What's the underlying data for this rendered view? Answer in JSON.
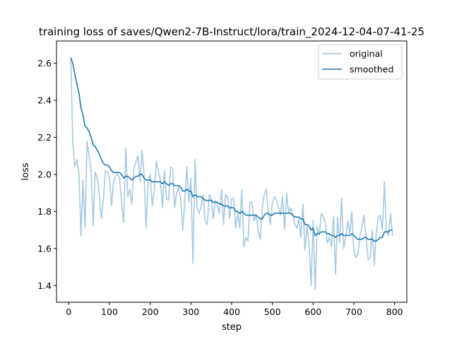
{
  "chart_data": {
    "type": "line",
    "title": "training loss of saves/Qwen2-7B-Instruct/lora/train_2024-12-04-07-41-25",
    "xlabel": "step",
    "ylabel": "loss",
    "xlim": [
      -30,
      830
    ],
    "ylim": [
      1.31,
      2.72
    ],
    "xticks": [
      0,
      100,
      200,
      300,
      400,
      500,
      600,
      700,
      800
    ],
    "yticks": [
      1.4,
      1.6,
      1.8,
      2.0,
      2.2,
      2.4,
      2.6
    ],
    "ytick_labels": [
      "1.4",
      "1.6",
      "1.8",
      "2.0",
      "2.2",
      "2.4",
      "2.6"
    ],
    "grid": false,
    "legend_position": "top-right",
    "series": [
      {
        "name": "original",
        "color": "#1f77b4",
        "alpha": 0.4,
        "x": [
          5,
          10,
          15,
          20,
          25,
          30,
          35,
          40,
          45,
          50,
          55,
          60,
          65,
          70,
          75,
          80,
          85,
          90,
          95,
          100,
          105,
          110,
          115,
          120,
          125,
          130,
          135,
          140,
          145,
          150,
          155,
          160,
          165,
          170,
          175,
          180,
          185,
          190,
          195,
          200,
          205,
          210,
          215,
          220,
          225,
          230,
          235,
          240,
          245,
          250,
          255,
          260,
          265,
          270,
          275,
          280,
          285,
          290,
          295,
          300,
          305,
          310,
          315,
          320,
          325,
          330,
          335,
          340,
          345,
          350,
          355,
          360,
          365,
          370,
          375,
          380,
          385,
          390,
          395,
          400,
          405,
          410,
          415,
          420,
          425,
          430,
          435,
          440,
          445,
          450,
          455,
          460,
          465,
          470,
          475,
          480,
          485,
          490,
          495,
          500,
          505,
          510,
          515,
          520,
          525,
          530,
          535,
          540,
          545,
          550,
          555,
          560,
          565,
          570,
          575,
          580,
          585,
          590,
          595,
          600,
          605,
          610,
          615,
          620,
          625,
          630,
          635,
          640,
          645,
          650,
          655,
          660,
          665,
          670,
          675,
          680,
          685,
          690,
          695,
          700,
          705,
          710,
          715,
          720,
          725,
          730,
          735,
          740,
          745,
          750,
          755,
          760,
          765,
          770,
          775,
          780,
          785,
          790,
          795
        ],
        "y": [
          2.63,
          2.17,
          2.04,
          2.08,
          2.01,
          1.67,
          1.97,
          1.71,
          2.18,
          2.1,
          2.02,
          1.72,
          2.01,
          1.98,
          1.89,
          1.76,
          1.86,
          2.02,
          2.01,
          1.99,
          1.83,
          1.96,
          1.99,
          2.0,
          1.98,
          1.84,
          1.74,
          2.14,
          1.88,
          1.92,
          1.84,
          2.03,
          2.07,
          2.1,
          1.96,
          2.13,
          2.0,
          1.71,
          1.96,
          2.0,
          1.83,
          1.92,
          2.07,
          2.02,
          1.97,
          1.82,
          2.02,
          1.87,
          1.86,
          2.04,
          2.03,
          1.82,
          1.9,
          1.93,
          1.86,
          1.7,
          1.86,
          2.04,
          1.85,
          1.98,
          1.52,
          2.08,
          1.82,
          1.79,
          1.83,
          1.89,
          1.75,
          1.73,
          1.89,
          1.87,
          1.76,
          1.86,
          1.83,
          1.79,
          1.92,
          1.73,
          1.89,
          1.88,
          1.76,
          1.87,
          1.87,
          1.71,
          1.79,
          1.71,
          1.92,
          1.61,
          1.66,
          1.64,
          1.85,
          1.85,
          1.75,
          1.78,
          1.7,
          1.65,
          1.82,
          1.89,
          1.92,
          1.8,
          1.73,
          1.85,
          1.88,
          1.86,
          1.82,
          1.78,
          1.88,
          1.7,
          1.9,
          1.79,
          1.82,
          1.78,
          1.73,
          1.71,
          1.76,
          1.66,
          1.84,
          1.59,
          1.72,
          1.62,
          1.4,
          1.75,
          1.38,
          1.72,
          1.67,
          1.79,
          1.77,
          1.74,
          1.63,
          1.66,
          1.61,
          1.77,
          1.46,
          1.77,
          1.63,
          1.87,
          1.6,
          1.66,
          1.75,
          1.68,
          1.8,
          1.59,
          1.55,
          1.57,
          1.67,
          1.72,
          1.78,
          1.66,
          1.54,
          1.55,
          1.7,
          1.51,
          1.68,
          1.77,
          1.78,
          1.7,
          1.96,
          1.69,
          1.67,
          1.79,
          1.67
        ]
      },
      {
        "name": "smoothed",
        "color": "#1f77b4",
        "alpha": 1.0,
        "x": [
          5,
          10,
          15,
          20,
          25,
          30,
          35,
          40,
          45,
          50,
          55,
          60,
          65,
          70,
          75,
          80,
          85,
          90,
          95,
          100,
          105,
          110,
          115,
          120,
          125,
          130,
          135,
          140,
          145,
          150,
          155,
          160,
          165,
          170,
          175,
          180,
          185,
          190,
          195,
          200,
          205,
          210,
          215,
          220,
          225,
          230,
          235,
          240,
          245,
          250,
          255,
          260,
          265,
          270,
          275,
          280,
          285,
          290,
          295,
          300,
          305,
          310,
          315,
          320,
          325,
          330,
          335,
          340,
          345,
          350,
          355,
          360,
          365,
          370,
          375,
          380,
          385,
          390,
          395,
          400,
          405,
          410,
          415,
          420,
          425,
          430,
          435,
          440,
          445,
          450,
          455,
          460,
          465,
          470,
          475,
          480,
          485,
          490,
          495,
          500,
          505,
          510,
          515,
          520,
          525,
          530,
          535,
          540,
          545,
          550,
          555,
          560,
          565,
          570,
          575,
          580,
          585,
          590,
          595,
          600,
          605,
          610,
          615,
          620,
          625,
          630,
          635,
          640,
          645,
          650,
          655,
          660,
          665,
          670,
          675,
          680,
          685,
          690,
          695,
          700,
          705,
          710,
          715,
          720,
          725,
          730,
          735,
          740,
          745,
          750,
          755,
          760,
          765,
          770,
          775,
          780,
          785,
          790,
          795
        ],
        "y": [
          2.63,
          2.6,
          2.54,
          2.49,
          2.44,
          2.36,
          2.32,
          2.26,
          2.25,
          2.23,
          2.2,
          2.16,
          2.15,
          2.13,
          2.11,
          2.08,
          2.06,
          2.05,
          2.05,
          2.04,
          2.02,
          2.01,
          2.01,
          2.01,
          2.01,
          2.0,
          1.98,
          1.99,
          1.99,
          1.98,
          1.97,
          1.98,
          1.99,
          1.99,
          2.0,
          2.0,
          1.98,
          1.97,
          1.97,
          1.97,
          1.96,
          1.96,
          1.96,
          1.96,
          1.96,
          1.95,
          1.96,
          1.95,
          1.94,
          1.95,
          1.95,
          1.94,
          1.94,
          1.94,
          1.93,
          1.91,
          1.91,
          1.92,
          1.91,
          1.91,
          1.88,
          1.89,
          1.88,
          1.88,
          1.88,
          1.87,
          1.86,
          1.86,
          1.86,
          1.86,
          1.85,
          1.85,
          1.85,
          1.84,
          1.84,
          1.83,
          1.83,
          1.83,
          1.82,
          1.82,
          1.82,
          1.8,
          1.8,
          1.79,
          1.8,
          1.79,
          1.78,
          1.78,
          1.78,
          1.78,
          1.78,
          1.78,
          1.77,
          1.76,
          1.76,
          1.78,
          1.79,
          1.79,
          1.78,
          1.78,
          1.79,
          1.79,
          1.79,
          1.79,
          1.79,
          1.79,
          1.79,
          1.79,
          1.79,
          1.78,
          1.77,
          1.77,
          1.77,
          1.76,
          1.76,
          1.73,
          1.73,
          1.72,
          1.7,
          1.71,
          1.67,
          1.68,
          1.68,
          1.69,
          1.69,
          1.69,
          1.68,
          1.68,
          1.67,
          1.67,
          1.66,
          1.67,
          1.67,
          1.68,
          1.67,
          1.67,
          1.67,
          1.67,
          1.68,
          1.67,
          1.66,
          1.65,
          1.65,
          1.65,
          1.66,
          1.66,
          1.65,
          1.65,
          1.65,
          1.64,
          1.64,
          1.65,
          1.66,
          1.66,
          1.69,
          1.69,
          1.69,
          1.7,
          1.7
        ]
      }
    ]
  }
}
